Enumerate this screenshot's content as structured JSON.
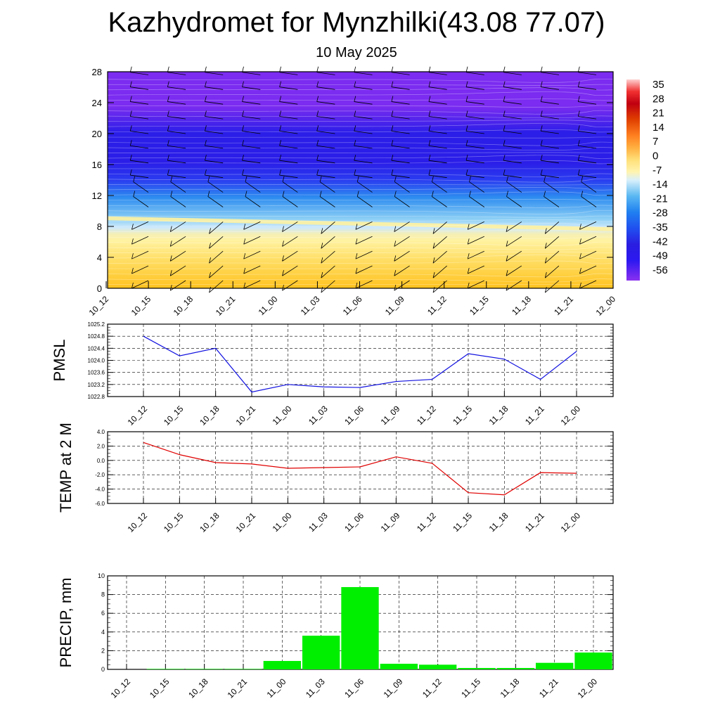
{
  "title": "Kazhydromet for Mynzhilki(43.08 77.07)",
  "subtitle": "10 May 2025",
  "chart_data": [
    {
      "type": "heatmap",
      "description_units": "temperature contours with wind barbs vs model level",
      "x_categories": [
        "10_12",
        "10_15",
        "10_18",
        "10_21",
        "11_00",
        "11_03",
        "11_06",
        "11_09",
        "11_12",
        "11_15",
        "11_18",
        "11_21",
        "12_00"
      ],
      "ylim": [
        0,
        28
      ],
      "y_ticks": [
        "0",
        "4",
        "8",
        "12",
        "16",
        "20",
        "24",
        "28"
      ],
      "colorbar_labels": [
        "35",
        "28",
        "21",
        "14",
        "7",
        "0",
        "-7",
        "-14",
        "-21",
        "-28",
        "-35",
        "-42",
        "-49",
        "-56"
      ],
      "colorbar_range": [
        -60,
        38
      ],
      "colors": {
        "cold": "#7b2cf0",
        "deep": "#2b1ee8",
        "blue": "#2d8cf0",
        "light": "#cfe9fb",
        "yellow": "#fff2a0",
        "warm": "#ffc21e"
      }
    },
    {
      "type": "line",
      "ylabel": "PMSL",
      "categories": [
        "10_12",
        "10_15",
        "10_18",
        "10_21",
        "11_00",
        "11_03",
        "11_06",
        "11_09",
        "11_12",
        "11_15",
        "11_18",
        "11_21",
        "12_00"
      ],
      "values": [
        1024.8,
        1024.15,
        1024.4,
        1022.95,
        1023.2,
        1023.12,
        1023.1,
        1023.3,
        1023.37,
        1024.22,
        1024.04,
        1023.37,
        1024.3
      ],
      "ylim": [
        1022.8,
        1025.2
      ],
      "y_ticks": [
        "1025.2",
        "1024.8",
        "1024.4",
        "1024.0",
        "1023.6",
        "1023.2",
        "1022.8"
      ],
      "color": "#1010e0"
    },
    {
      "type": "line",
      "ylabel": "TEMP at 2 M",
      "categories": [
        "10_12",
        "10_15",
        "10_18",
        "10_21",
        "11_00",
        "11_03",
        "11_06",
        "11_09",
        "11_12",
        "11_15",
        "11_18",
        "11_21",
        "12_00"
      ],
      "values": [
        2.5,
        0.8,
        -0.3,
        -0.5,
        -1.1,
        -1.0,
        -0.9,
        0.5,
        -0.4,
        -4.5,
        -4.8,
        -1.7,
        -1.8
      ],
      "ylim": [
        -6,
        4
      ],
      "y_ticks": [
        "4.0",
        "2.0",
        "0.0",
        "-2.0",
        "-4.0",
        "-6.0"
      ],
      "color": "#e00000"
    },
    {
      "type": "bar",
      "ylabel": "PRECIP, mm",
      "categories": [
        "10_12",
        "10_15",
        "10_18",
        "10_21",
        "11_00",
        "11_03",
        "11_06",
        "11_09",
        "11_12",
        "11_15",
        "11_18",
        "11_21",
        "12_00"
      ],
      "values": [
        0,
        0.05,
        0.05,
        0.05,
        0.9,
        3.6,
        8.8,
        0.6,
        0.5,
        0.15,
        0.15,
        0.7,
        1.8
      ],
      "ylim": [
        0,
        10
      ],
      "y_ticks": [
        "0",
        "2",
        "4",
        "6",
        "8",
        "10"
      ],
      "color": "#00ee00"
    }
  ]
}
